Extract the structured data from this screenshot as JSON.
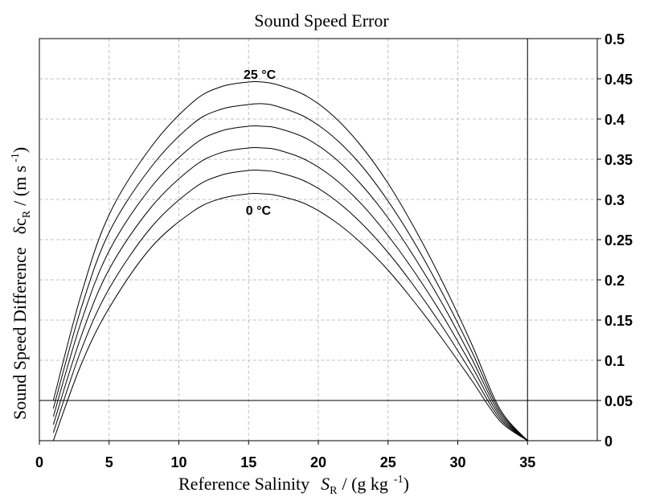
{
  "chart_data": {
    "type": "line",
    "title": "Sound Speed Error",
    "xlabel": {
      "text": "Reference Salinity",
      "symbol": "S",
      "subscript": "R",
      "unit_open": "/ (g kg",
      "unit_exp": "-1",
      "unit_close": ")"
    },
    "ylabel": {
      "text": "Sound Speed Difference",
      "symbol": "δc",
      "subscript": "R",
      "unit_open": "/ (m s",
      "unit_exp": "-1",
      "unit_close": ")"
    },
    "xlim": [
      0,
      40
    ],
    "ylim": [
      0,
      0.5
    ],
    "x_ticks": [
      0,
      5,
      10,
      15,
      20,
      25,
      30,
      35
    ],
    "x_tick_labels": [
      "0",
      "5",
      "10",
      "15",
      "20",
      "25",
      "30",
      "35"
    ],
    "y_ticks": [
      0,
      0.05,
      0.1,
      0.15,
      0.2,
      0.25,
      0.3,
      0.35,
      0.4,
      0.45,
      0.5
    ],
    "y_tick_labels": [
      "0",
      "0.05",
      "0.1",
      "0.15",
      "0.2",
      "0.25",
      "0.3",
      "0.35",
      "0.4",
      "0.45",
      "0.5"
    ],
    "y_axis_side": "right",
    "grid": true,
    "reference_lines": {
      "x": 35,
      "y": 0.05
    },
    "series": [
      {
        "name": "0 °C",
        "x": [
          1,
          3,
          5,
          8,
          11,
          13,
          15,
          16,
          17,
          19,
          21,
          23,
          25,
          27,
          29,
          31,
          33,
          35
        ],
        "y": [
          0.0,
          0.095,
          0.165,
          0.24,
          0.285,
          0.301,
          0.307,
          0.307,
          0.305,
          0.295,
          0.275,
          0.247,
          0.212,
          0.17,
          0.124,
          0.075,
          0.025,
          0.0
        ]
      },
      {
        "x": [
          1,
          3,
          5,
          8,
          11,
          13,
          15,
          16,
          17,
          19,
          21,
          23,
          25,
          27,
          29,
          31,
          33,
          35
        ],
        "y": [
          0.01,
          0.113,
          0.189,
          0.265,
          0.313,
          0.33,
          0.336,
          0.336,
          0.334,
          0.323,
          0.302,
          0.272,
          0.234,
          0.189,
          0.139,
          0.084,
          0.028,
          0.0
        ]
      },
      {
        "x": [
          1,
          3,
          5,
          8,
          11,
          13,
          15,
          16,
          17,
          19,
          21,
          23,
          25,
          27,
          29,
          31,
          33,
          35
        ],
        "y": [
          0.02,
          0.13,
          0.213,
          0.29,
          0.34,
          0.358,
          0.364,
          0.364,
          0.362,
          0.35,
          0.328,
          0.296,
          0.255,
          0.207,
          0.153,
          0.093,
          0.031,
          0.0
        ]
      },
      {
        "x": [
          1,
          3,
          5,
          8,
          11,
          13,
          15,
          16,
          17,
          19,
          21,
          23,
          25,
          27,
          29,
          31,
          33,
          35
        ],
        "y": [
          0.03,
          0.148,
          0.236,
          0.315,
          0.367,
          0.385,
          0.391,
          0.391,
          0.389,
          0.377,
          0.354,
          0.32,
          0.277,
          0.225,
          0.167,
          0.102,
          0.034,
          0.0
        ]
      },
      {
        "x": [
          1,
          3,
          5,
          8,
          11,
          13,
          15,
          16,
          17,
          19,
          21,
          23,
          25,
          27,
          29,
          31,
          33,
          35
        ],
        "y": [
          0.04,
          0.165,
          0.259,
          0.34,
          0.394,
          0.412,
          0.418,
          0.419,
          0.416,
          0.403,
          0.379,
          0.344,
          0.298,
          0.243,
          0.18,
          0.111,
          0.037,
          0.0
        ]
      },
      {
        "name": "25 °C",
        "x": [
          1,
          3,
          5,
          8,
          11,
          13,
          15,
          16,
          17,
          19,
          21,
          23,
          25,
          27,
          29,
          31,
          33,
          35
        ],
        "y": [
          0.05,
          0.182,
          0.281,
          0.365,
          0.421,
          0.44,
          0.446,
          0.446,
          0.443,
          0.43,
          0.405,
          0.368,
          0.32,
          0.261,
          0.194,
          0.12,
          0.04,
          0.0
        ]
      }
    ],
    "annotations": [
      {
        "text": "25 °C",
        "x": 15.8,
        "y": 0.456
      },
      {
        "text": "0 °C",
        "x": 15.7,
        "y": 0.287
      }
    ]
  }
}
